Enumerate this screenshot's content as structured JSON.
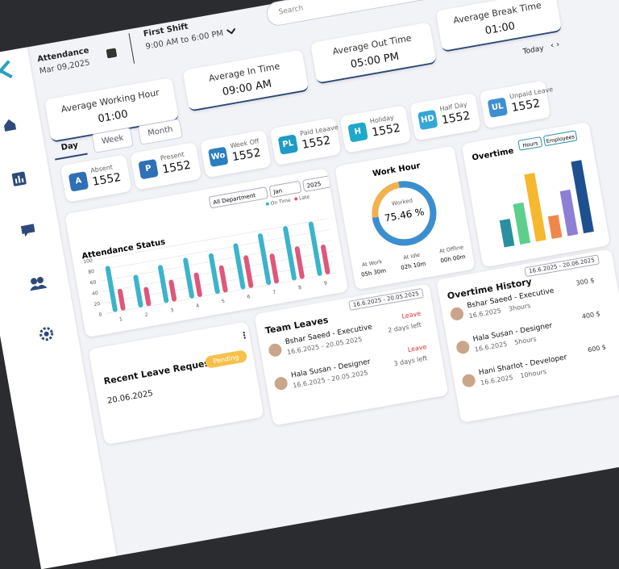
{
  "search_placeholder": "Search",
  "header": {
    "title": "Attendance",
    "date": "Mar 09,2025",
    "shift_title": "First Shift",
    "shift_time": "9:00 AM to 6:00 PM",
    "period": "Today"
  },
  "summary": [
    {
      "label": "Average Working Hour",
      "value": "01:00"
    },
    {
      "label": "Average In Time",
      "value": "09:00 AM"
    },
    {
      "label": "Average Out Time",
      "value": "05:00 PM"
    },
    {
      "label": "Average Break Time",
      "value": "01:00"
    }
  ],
  "tabs": [
    "Day",
    "Week",
    "Month"
  ],
  "stats": [
    {
      "badge": "A",
      "label": "Absent",
      "value": 1552,
      "color": "#2f6fb5"
    },
    {
      "badge": "P",
      "label": "Present",
      "value": 1552,
      "color": "#2f6fb5"
    },
    {
      "badge": "Wo",
      "label": "Week Off",
      "value": 1552,
      "color": "#2a7fc0"
    },
    {
      "badge": "PL",
      "label": "Paid Leaave",
      "value": 1552,
      "color": "#1f9bc4"
    },
    {
      "badge": "H",
      "label": "Holiday",
      "value": 1552,
      "color": "#1fa8c9"
    },
    {
      "badge": "HD",
      "label": "Half Day",
      "value": 1552,
      "color": "#35a7d6"
    },
    {
      "badge": "UL",
      "label": "Unpaid Leave",
      "value": 1552,
      "color": "#3f8fd0"
    }
  ],
  "attendance_status": {
    "type": "bar",
    "title": "Attendance Status",
    "filters": [
      "All Department",
      "Jan",
      "2025"
    ],
    "categories": [
      "1",
      "2",
      "3",
      "4",
      "5",
      "6",
      "7",
      "8",
      "9"
    ],
    "series": [
      {
        "name": "On Time",
        "color": "#3bb3cc",
        "values": [
          85,
          60,
          70,
          75,
          75,
          85,
          95,
          100,
          100
        ]
      },
      {
        "name": "Late",
        "color": "#e0567a",
        "values": [
          40,
          35,
          40,
          45,
          50,
          60,
          55,
          60,
          55
        ]
      }
    ],
    "ylim": [
      0,
      100
    ],
    "yticks": [
      0,
      20,
      40,
      60,
      80,
      100
    ],
    "grid": true
  },
  "work_hour": {
    "title": "Work Hour",
    "center_label": "Worked",
    "percent": 75.46,
    "percent_label": "75.46 %",
    "items": [
      {
        "label": "At Work",
        "value": "05h 30m"
      },
      {
        "label": "At Idle",
        "value": "02h 10m"
      },
      {
        "label": "At Offline",
        "value": "00h 00m"
      }
    ]
  },
  "overtime": {
    "type": "bar",
    "title": "Overtime",
    "toggles": [
      "Hours",
      "Employees"
    ],
    "values": [
      30,
      45,
      75,
      25,
      50,
      80
    ],
    "colors": [
      "#2a8f9e",
      "#5ccf8c",
      "#f5b82e",
      "#f0874a",
      "#8d7fd6",
      "#1e4f8f"
    ]
  },
  "recent_leave": {
    "title": "Recent Leave Request",
    "status": "Pending",
    "date": "20.06.2025"
  },
  "team_leaves": {
    "title": "Team Leaves",
    "range": "16.6.2025 - 20.05.2025",
    "items": [
      {
        "name": "Bshar Saeed - Executive",
        "dates": "16.6.2025 - 20.05.2025",
        "status": "Leave",
        "remaining": "2 days left"
      },
      {
        "name": "Hala Susan - Designer",
        "dates": "16.6.2025 - 20.05.2025",
        "status": "Leave",
        "remaining": "3 days left"
      }
    ]
  },
  "overtime_history": {
    "title": "Overtime History",
    "range": "16.6.2025 - 20.06.2025",
    "items": [
      {
        "name": "Bshar Saeed - Executive",
        "date": "16.6.2025",
        "hours": "3hours",
        "amount": "300 $"
      },
      {
        "name": "Hala Susan - Designer",
        "date": "16.6.2025",
        "hours": "5hours",
        "amount": "400 $"
      },
      {
        "name": "Hani Sharlot - Developer",
        "date": "16.6.2025",
        "hours": "10hours",
        "amount": "600 $"
      }
    ]
  }
}
